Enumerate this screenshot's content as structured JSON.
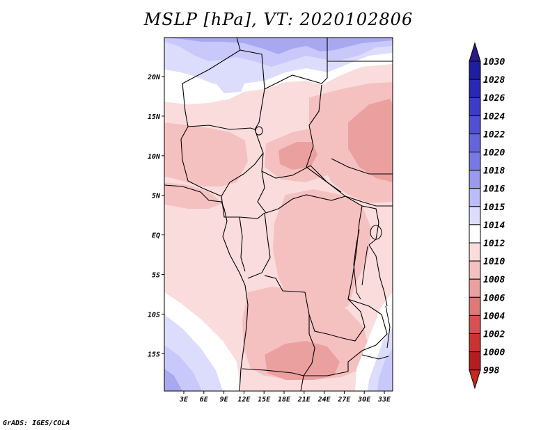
{
  "title": "MSLP [hPa], VT: 2020102806",
  "footer": "GrADS: IGES/COLA",
  "map": {
    "lon_labels": [
      "3E",
      "6E",
      "9E",
      "12E",
      "15E",
      "18E",
      "21E",
      "24E",
      "27E",
      "30E",
      "33E"
    ],
    "lat_labels": [
      "20N",
      "15N",
      "10N",
      "5N",
      "EQ",
      "5S",
      "10S",
      "15S"
    ]
  },
  "colorbar": {
    "labels": [
      "1030",
      "1028",
      "1026",
      "1024",
      "1022",
      "1020",
      "1018",
      "1016",
      "1015",
      "1014",
      "1012",
      "1010",
      "1008",
      "1006",
      "1004",
      "1002",
      "1000",
      "998"
    ],
    "colors": [
      "#1e1ea0",
      "#2828b4",
      "#3c3cc8",
      "#5050d2",
      "#6464dc",
      "#7878e6",
      "#9a9af0",
      "#bcbcf8",
      "#dcdcfc",
      "#ffffff",
      "#fadcdc",
      "#f5c0c0",
      "#eba0a0",
      "#e07878",
      "#d85050",
      "#cc3232",
      "#b41e1e"
    ],
    "top_color": "#2a1a8c",
    "bottom_color": "#c8281e"
  },
  "field_colors": {
    "p1015": "#dcdcfc",
    "p1016": "#c8c8fa",
    "p1018": "#a8a8f0",
    "p1014": "#ffffff",
    "p1012": "#fadcdc",
    "p1010": "#f5c0c0",
    "p1008": "#eba0a0"
  }
}
